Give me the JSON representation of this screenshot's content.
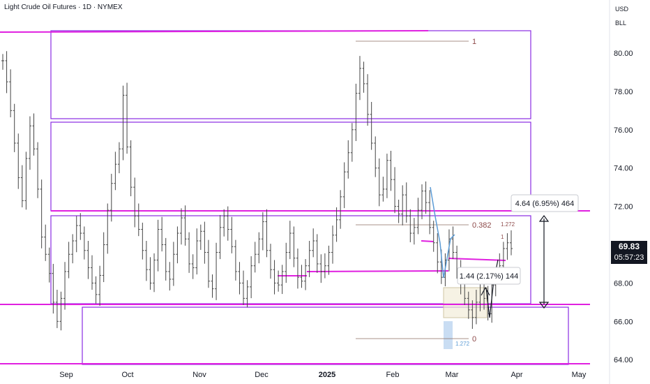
{
  "header": {
    "title": "Light Crude Oil Futures · 1D · NYMEX",
    "currency": "USD",
    "unit": "BLL"
  },
  "price_axis": {
    "ticks": [
      "80.00",
      "78.00",
      "76.00",
      "74.00",
      "72.00",
      "70.00",
      "68.00",
      "66.00",
      "64.00"
    ]
  },
  "time_axis": {
    "labels": [
      "Sep",
      "Oct",
      "Nov",
      "Dec",
      "2025",
      "Feb",
      "Mar",
      "Apr",
      "May"
    ]
  },
  "current": {
    "price": "69.83",
    "countdown": "05:57:23",
    "color": "#131722"
  },
  "annotations": {
    "measure_label": "4.64 (6.95%) 464",
    "fib_top_label": "1",
    "fib_382_label": "0.382",
    "fib_zero_label": "0",
    "small_top_label": "1.272",
    "small_one_label": "1",
    "small_bottom_label": "1.272",
    "inner_measure_label": "1.44 (2.17%) 144"
  },
  "colors": {
    "magenta": "#e020e0",
    "purple": "#8a2be2",
    "bars": "#444444",
    "fib": "#8d6e63",
    "blue": "#5b9bd5"
  },
  "chart_data": {
    "type": "line",
    "title": "Light Crude Oil Futures · 1D · NYMEX",
    "xlabel": "",
    "ylabel": "",
    "x_ticks": [
      "Sep",
      "Oct",
      "Nov",
      "Dec",
      "2025",
      "Feb",
      "Mar",
      "Apr",
      "May"
    ],
    "y_ticks": [
      "64.00",
      "66.00",
      "68.00",
      "70.00",
      "72.00",
      "74.00",
      "76.00",
      "78.00",
      "80.00"
    ],
    "ylim": [
      63.6,
      81.7
    ],
    "grid": false,
    "legend": "none",
    "series": [
      {
        "values": [
          79.6,
          78.5,
          77.0,
          75.3,
          73.5,
          72.3,
          74.5,
          76.2,
          75.0,
          72.9,
          70.4,
          69.5,
          68.5,
          67.0,
          66.0,
          67.2,
          68.6,
          69.5,
          70.2,
          71.0,
          70.6,
          69.7,
          68.8,
          68.0,
          67.4,
          68.4,
          70.0,
          71.8,
          73.2,
          74.2,
          75.0,
          77.8,
          75.1,
          73.0,
          71.5,
          70.8,
          69.7,
          68.7,
          68.0,
          69.2,
          70.8,
          70.0,
          68.6,
          68.2,
          69.5,
          70.6,
          71.4,
          70.3,
          69.0,
          68.8,
          70.2,
          70.7,
          69.6,
          68.1,
          67.7,
          69.6,
          70.9,
          71.5,
          70.8,
          69.9,
          68.6,
          68.0,
          67.2,
          67.8,
          68.9,
          69.5,
          70.3,
          71.2,
          69.7,
          68.7,
          68.0,
          67.9,
          68.6,
          69.6,
          70.6,
          69.3,
          68.3,
          68.1,
          68.9,
          69.7,
          70.2,
          69.0,
          68.6,
          68.9,
          69.6,
          70.5,
          71.3,
          72.5,
          73.8,
          74.8,
          76.0,
          77.9,
          79.2,
          78.4,
          76.8,
          75.3,
          74.0,
          72.6,
          72.9,
          74.4,
          73.4,
          72.0,
          71.6,
          72.6,
          71.5,
          70.6,
          70.9,
          71.8,
          72.8,
          72.2,
          70.9,
          70.1,
          69.1,
          68.3,
          69.2,
          70.3,
          69.6,
          68.7,
          68.0,
          67.2,
          66.6,
          66.2,
          67.0,
          68.0,
          67.2,
          66.4,
          67.9,
          68.3,
          68.9,
          69.8,
          70.1,
          69.8
        ]
      }
    ]
  }
}
